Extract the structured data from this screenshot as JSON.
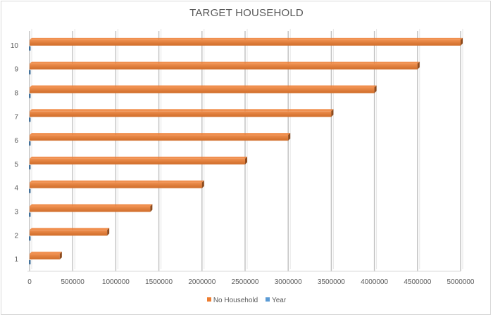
{
  "chart_data": {
    "type": "bar",
    "orientation": "horizontal",
    "title": "TARGET HOUSEHOLD",
    "categories": [
      "1",
      "2",
      "3",
      "4",
      "5",
      "6",
      "7",
      "8",
      "9",
      "10"
    ],
    "series": [
      {
        "name": "No Household",
        "color": "#ED7D31",
        "values": [
          350000,
          900000,
          1400000,
          2000000,
          2500000,
          3000000,
          3500000,
          4000000,
          4500000,
          5000000
        ]
      },
      {
        "name": "Year",
        "color": "#5B9BD5",
        "values": [
          1,
          2,
          3,
          4,
          5,
          6,
          7,
          8,
          9,
          10
        ]
      }
    ],
    "xticks": [
      "0",
      "500000",
      "1000000",
      "1500000",
      "2000000",
      "2500000",
      "3000000",
      "3500000",
      "4000000",
      "4500000",
      "5000000"
    ],
    "xlim": [
      0,
      5000000
    ],
    "grid": "vertical",
    "legend_position": "bottom"
  }
}
